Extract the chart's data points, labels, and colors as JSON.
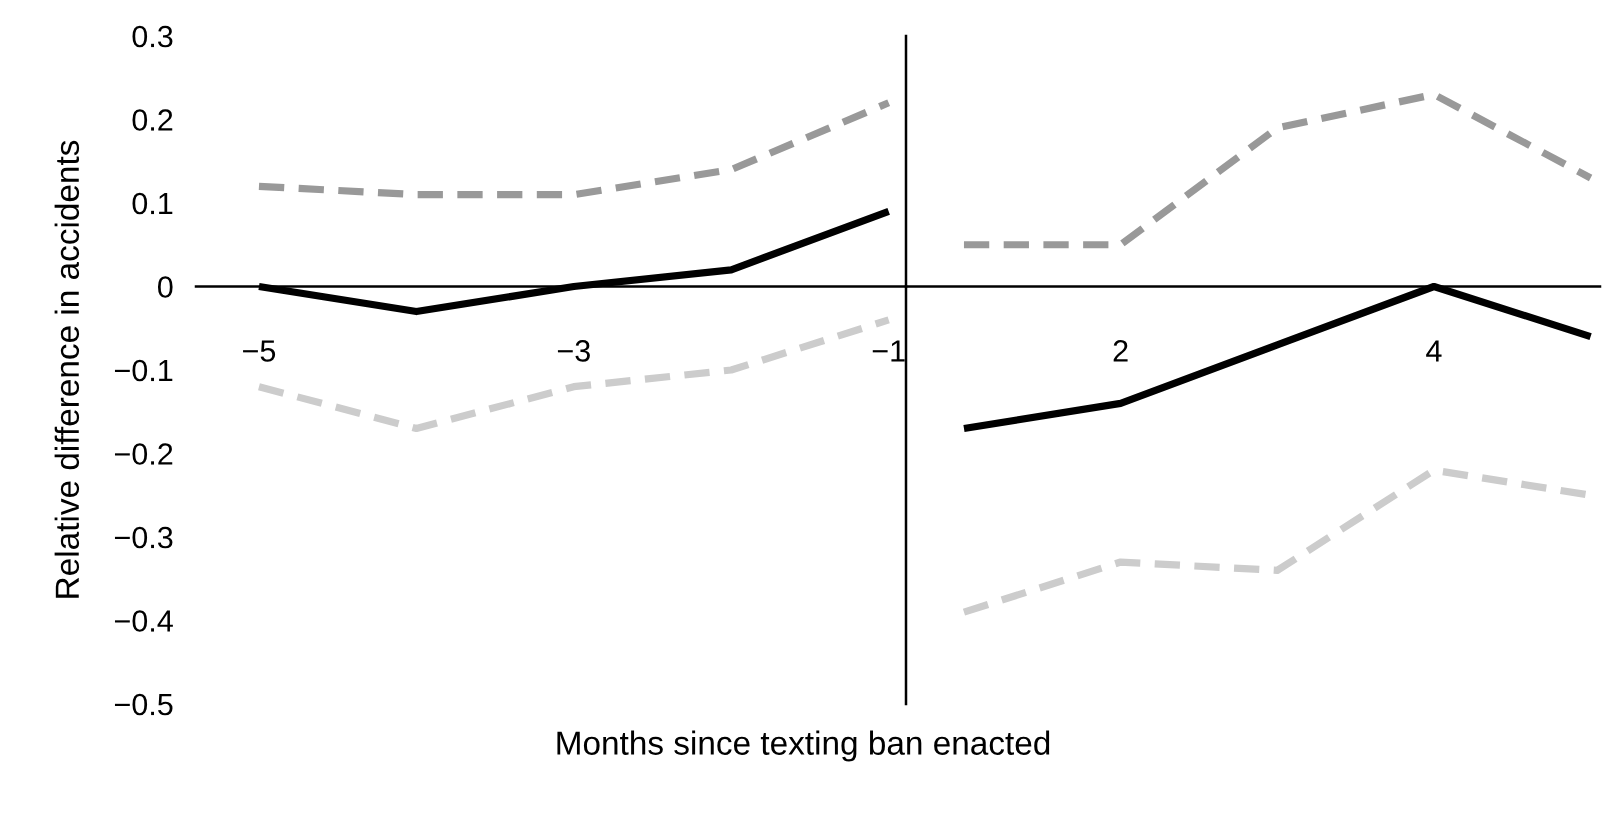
{
  "chart_data": [
    {
      "type": "line",
      "xlabel": "Months since texting ban enacted",
      "ylabel": "Relative difference in accidents",
      "x": [
        -5,
        -4,
        -3,
        -2,
        -1
      ],
      "xlim": [
        -5.4,
        -0.89
      ],
      "xticks": [
        {
          "value": -5,
          "label": "−5"
        },
        {
          "value": -3,
          "label": "−3"
        },
        {
          "value": -1,
          "label": "−1"
        }
      ],
      "ylim": [
        -0.5,
        0.3
      ],
      "yticks": [
        0.3,
        0.2,
        0.1,
        0,
        {
          "value": -0.1,
          "label": "−0.1"
        },
        {
          "value": -0.2,
          "label": "−0.2"
        },
        {
          "value": -0.3,
          "label": "−0.3"
        },
        {
          "value": -0.4,
          "label": "−0.4"
        },
        {
          "value": -0.5,
          "label": "−0.5"
        }
      ],
      "grid": false,
      "legend": false,
      "series": [
        {
          "color": "#000000",
          "line_style": "solid",
          "values": [
            0.0,
            -0.03,
            0.0,
            0.02,
            0.09
          ]
        },
        {
          "color": "#999999",
          "line_style": "dashed",
          "values": [
            0.12,
            0.11,
            0.11,
            0.14,
            0.22
          ]
        },
        {
          "color": "#cccccc",
          "line_style": "dashed",
          "values": [
            -0.12,
            -0.17,
            -0.12,
            -0.1,
            -0.04
          ]
        }
      ]
    },
    {
      "type": "line",
      "x": [
        1,
        2,
        3,
        4,
        5
      ],
      "xlim": [
        0.63,
        5.06
      ],
      "xticks": [
        2,
        4
      ],
      "ylim": [
        -0.5,
        0.3
      ],
      "tick_labels": "x",
      "grid": false,
      "legend": false,
      "series": [
        {
          "color": "#000000",
          "line_style": "solid",
          "values": [
            -0.17,
            -0.14,
            -0.07,
            0.0,
            -0.06
          ]
        },
        {
          "color": "#999999",
          "line_style": "dashed",
          "values": [
            0.05,
            0.05,
            0.19,
            0.23,
            0.13
          ]
        },
        {
          "color": "#cccccc",
          "line_style": "dashed",
          "values": [
            -0.39,
            -0.33,
            -0.34,
            -0.22,
            -0.25
          ]
        }
      ]
    }
  ]
}
